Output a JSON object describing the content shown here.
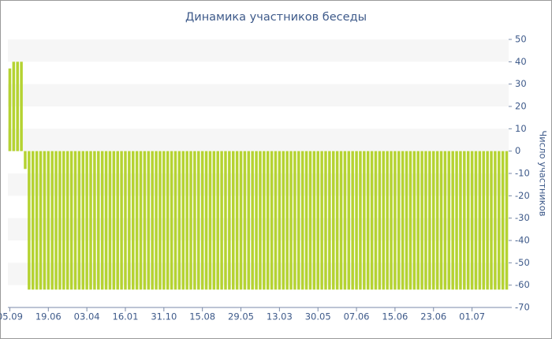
{
  "chart_data": {
    "type": "bar",
    "title": "Динамика участников беседы",
    "y_label": "Число участников",
    "categories": [
      "05.09",
      null,
      null,
      null,
      null,
      null,
      null,
      null,
      null,
      null,
      "19.06",
      null,
      null,
      null,
      null,
      null,
      null,
      null,
      null,
      null,
      "03.04",
      null,
      null,
      null,
      null,
      null,
      null,
      null,
      null,
      null,
      "16.01",
      null,
      null,
      null,
      null,
      null,
      null,
      null,
      null,
      null,
      "31.10",
      null,
      null,
      null,
      null,
      null,
      null,
      null,
      null,
      null,
      "15.08",
      null,
      null,
      null,
      null,
      null,
      null,
      null,
      null,
      null,
      "29.05",
      null,
      null,
      null,
      null,
      null,
      null,
      null,
      null,
      null,
      "13.03",
      null,
      null,
      null,
      null,
      null,
      null,
      null,
      null,
      null,
      "30.05",
      null,
      null,
      null,
      null,
      null,
      null,
      null,
      null,
      null,
      "07.06",
      null,
      null,
      null,
      null,
      null,
      null,
      null,
      null,
      null,
      "15.06",
      null,
      null,
      null,
      null,
      null,
      null,
      null,
      null,
      null,
      "23.06",
      null,
      null,
      null,
      null,
      null,
      null,
      null,
      null,
      null,
      "01.07",
      null,
      null,
      null,
      null,
      null,
      null,
      null,
      null,
      null
    ],
    "values": [
      37,
      40,
      40,
      40,
      -8,
      -62,
      -62,
      -62,
      -62,
      -62,
      -62,
      -62,
      -62,
      -62,
      -62,
      -62,
      -62,
      -62,
      -62,
      -62,
      -62,
      -62,
      -62,
      -62,
      -62,
      -62,
      -62,
      -62,
      -62,
      -62,
      -62,
      -62,
      -62,
      -62,
      -62,
      -62,
      -62,
      -62,
      -62,
      -62,
      -62,
      -62,
      -62,
      -62,
      -62,
      -62,
      -62,
      -62,
      -62,
      -62,
      -62,
      -62,
      -62,
      -62,
      -62,
      -62,
      -62,
      -62,
      -62,
      -62,
      -62,
      -62,
      -62,
      -62,
      -62,
      -62,
      -62,
      -62,
      -62,
      -62,
      -62,
      -62,
      -62,
      -62,
      -62,
      -62,
      -62,
      -62,
      -62,
      -62,
      -62,
      -62,
      -62,
      -62,
      -62,
      -62,
      -62,
      -62,
      -62,
      -62,
      -62,
      -62,
      -62,
      -62,
      -62,
      -62,
      -62,
      -62,
      -62,
      -62,
      -62,
      -62,
      -62,
      -62,
      -62,
      -62,
      -62,
      -62,
      -62,
      -62,
      -62,
      -62,
      -62,
      -62,
      -62,
      -62,
      -62,
      -62,
      -62,
      -62,
      -62,
      -62,
      -62,
      -62,
      -62,
      -62,
      -62,
      -62,
      -62,
      -62
    ],
    "color": "#b5d332",
    "ylim": [
      -70,
      50
    ],
    "yticks": [
      -70,
      -60,
      -50,
      -40,
      -30,
      -20,
      -10,
      0,
      10,
      20,
      30,
      40,
      50
    ],
    "grid": true
  }
}
